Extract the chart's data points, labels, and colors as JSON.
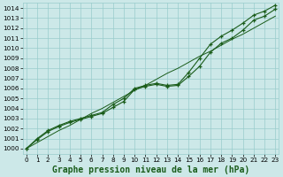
{
  "x": [
    0,
    1,
    2,
    3,
    4,
    5,
    6,
    7,
    8,
    9,
    10,
    11,
    12,
    13,
    14,
    15,
    16,
    17,
    18,
    19,
    20,
    21,
    22,
    23
  ],
  "line_straight": [
    1000.0,
    1000.6,
    1001.2,
    1001.8,
    1002.3,
    1002.9,
    1003.5,
    1004.0,
    1004.6,
    1005.2,
    1005.8,
    1006.3,
    1006.9,
    1007.5,
    1008.0,
    1008.6,
    1009.2,
    1009.7,
    1010.3,
    1010.9,
    1011.4,
    1012.0,
    1012.6,
    1013.2
  ],
  "line_upper": [
    1000.0,
    1001.0,
    1001.8,
    1002.3,
    1002.7,
    1003.0,
    1003.3,
    1003.6,
    1004.4,
    1005.0,
    1006.0,
    1006.3,
    1006.5,
    1006.3,
    1006.4,
    1007.6,
    1009.0,
    1010.4,
    1011.2,
    1011.8,
    1012.5,
    1013.3,
    1013.7,
    1014.3
  ],
  "line_lower": [
    1000.0,
    1000.9,
    1001.7,
    1002.2,
    1002.6,
    1002.9,
    1003.2,
    1003.5,
    1004.1,
    1004.7,
    1005.9,
    1006.2,
    1006.4,
    1006.2,
    1006.3,
    1007.2,
    1008.2,
    1009.6,
    1010.5,
    1011.0,
    1011.8,
    1012.8,
    1013.2,
    1013.9
  ],
  "bg_color": "#cce8e8",
  "grid_color": "#99cccc",
  "line_color": "#1a5c1a",
  "marker": "+",
  "xlabel": "Graphe pression niveau de la mer (hPa)",
  "ylim_min": 999.5,
  "ylim_max": 1014.5,
  "xlim_min": -0.3,
  "xlim_max": 23.3,
  "ytick_min": 1000,
  "ytick_max": 1014,
  "label_fontsize": 7.0,
  "tick_fontsize": 5.2
}
